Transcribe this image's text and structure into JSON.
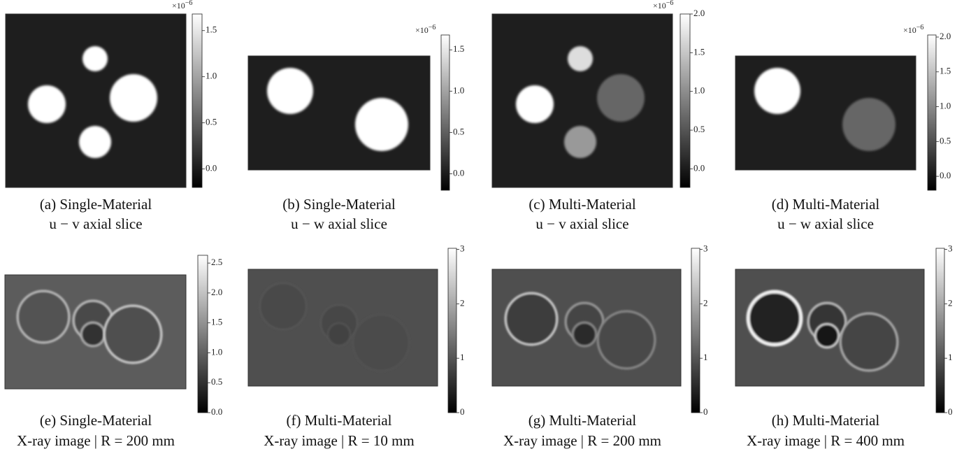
{
  "panels": [
    {
      "caption": [
        "(a) Single-Material",
        "u − v axial slice"
      ],
      "multiplier": {
        "base": "×10",
        "exponent": "−6"
      },
      "colorbar": {
        "lim": [
          -0.2,
          1.68
        ],
        "ticks": [
          {
            "value": 0,
            "label": "0.0"
          },
          {
            "value": 0.5,
            "label": "0.5"
          },
          {
            "value": 1,
            "label": "1.0"
          },
          {
            "value": 1.5,
            "label": "1.5"
          }
        ]
      }
    },
    {
      "caption": [
        "(b) Single-Material",
        "u − w axial slice"
      ],
      "multiplier": {
        "base": "×10",
        "exponent": "−6"
      },
      "colorbar": {
        "lim": [
          -0.2,
          1.68
        ],
        "ticks": [
          {
            "value": 0,
            "label": "0.0"
          },
          {
            "value": 0.5,
            "label": "0.5"
          },
          {
            "value": 1,
            "label": "1.0"
          },
          {
            "value": 1.5,
            "label": "1.5"
          }
        ]
      }
    },
    {
      "caption": [
        "(c) Multi-Material",
        "u − v axial slice"
      ],
      "multiplier": {
        "base": "×10",
        "exponent": "−6"
      },
      "colorbar": {
        "lim": [
          -0.24,
          2.0
        ],
        "ticks": [
          {
            "value": 0,
            "label": "0.0"
          },
          {
            "value": 0.5,
            "label": "0.5"
          },
          {
            "value": 1,
            "label": "1.0"
          },
          {
            "value": 1.5,
            "label": "1.5"
          },
          {
            "value": 2,
            "label": "2.0"
          }
        ]
      }
    },
    {
      "caption": [
        "(d) Multi-Material",
        "u − w axial slice"
      ],
      "multiplier": {
        "base": "×10",
        "exponent": "−6"
      },
      "colorbar": {
        "lim": [
          -0.2,
          2.03
        ],
        "ticks": [
          {
            "value": 0,
            "label": "0.0"
          },
          {
            "value": 0.5,
            "label": "0.5"
          },
          {
            "value": 1,
            "label": "1.0"
          },
          {
            "value": 1.5,
            "label": "1.5"
          },
          {
            "value": 2,
            "label": "2.0"
          }
        ]
      }
    },
    {
      "caption": [
        "(e) Single-Material",
        "X-ray image | R = 200 mm"
      ],
      "colorbar": {
        "lim": [
          0,
          2.63
        ],
        "ticks": [
          {
            "value": 0,
            "label": "0.0"
          },
          {
            "value": 0.5,
            "label": "0.5"
          },
          {
            "value": 1,
            "label": "1.0"
          },
          {
            "value": 1.5,
            "label": "1.5"
          },
          {
            "value": 2,
            "label": "2.0"
          },
          {
            "value": 2.5,
            "label": "2.5"
          }
        ]
      }
    },
    {
      "caption": [
        "(f) Multi-Material",
        "X-ray image | R = 10 mm"
      ],
      "colorbar": {
        "lim": [
          0,
          3.02
        ],
        "ticks": [
          0,
          1,
          2,
          3
        ]
      }
    },
    {
      "caption": [
        "(g) Multi-Material",
        "X-ray image | R = 200 mm"
      ],
      "colorbar": {
        "lim": [
          0,
          3.02
        ],
        "ticks": [
          0,
          1,
          2,
          3
        ]
      }
    },
    {
      "caption": [
        "(h) Multi-Material",
        "X-ray image | R = 400 mm"
      ],
      "colorbar": {
        "lim": [
          0,
          3.02
        ],
        "ticks": [
          0,
          1,
          2,
          3
        ]
      }
    }
  ]
}
